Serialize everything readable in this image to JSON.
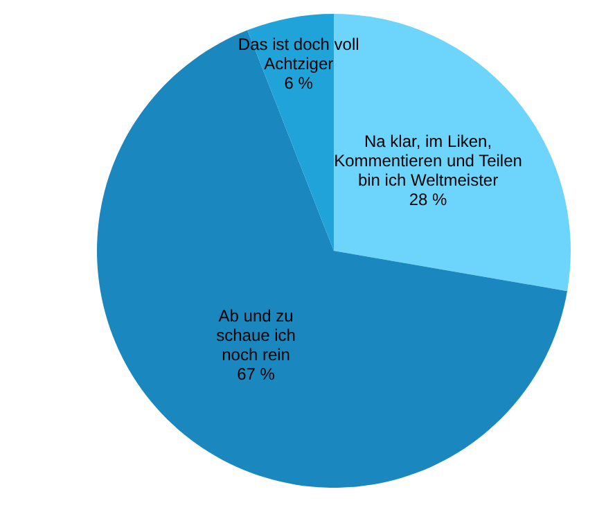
{
  "chart_data": {
    "type": "pie",
    "categories": [
      "Na klar, im Liken, Kommentieren und Teilen bin ich Weltmeister",
      "Ab und zu schaue ich noch rein",
      "Das ist doch voll Achtziger"
    ],
    "values": [
      28,
      67,
      6
    ],
    "colors": [
      "#6dd5fb",
      "#1a87bf",
      "#1fa3d9"
    ],
    "value_labels": [
      "28 %",
      "67 %",
      "6 %"
    ],
    "legend": false
  }
}
